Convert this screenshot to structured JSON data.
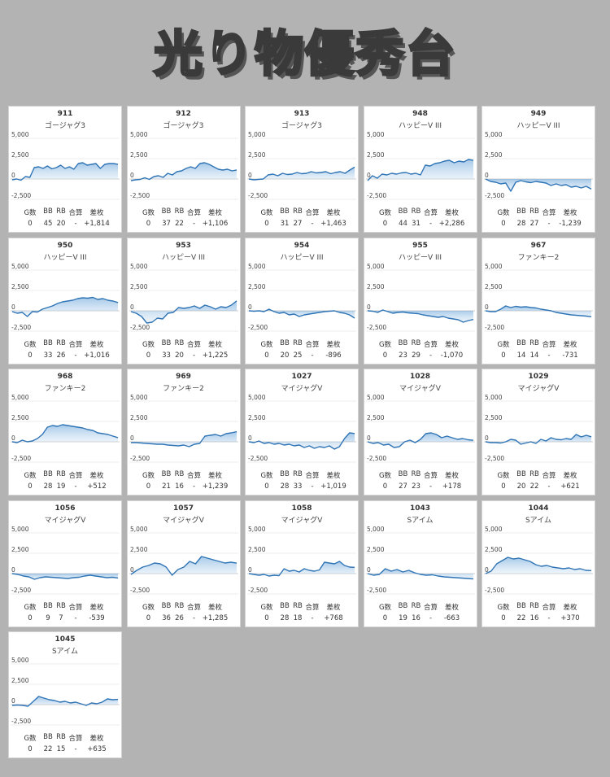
{
  "title": "光り物優秀台",
  "stat_labels": [
    "G数",
    "BB",
    "RB",
    "合算",
    "差枚"
  ],
  "chart_data": [
    {
      "type": "area",
      "machine_no": "911",
      "model": "ゴージャグ3",
      "ylim": [
        -2500,
        5000
      ],
      "yticks": [
        "5,000",
        "2,500",
        "0",
        "-2,500"
      ],
      "values": [
        -100,
        0,
        -150,
        300,
        200,
        1400,
        1500,
        1300,
        1600,
        1250,
        1400,
        1700,
        1300,
        1500,
        1200,
        1900,
        2000,
        1700,
        1800,
        1900,
        1300,
        1800,
        1900,
        1900,
        1814
      ],
      "stats": {
        "g": "0",
        "bb": "45",
        "rb": "20",
        "total": "-",
        "diff": "+1,814"
      }
    },
    {
      "type": "area",
      "machine_no": "912",
      "model": "ゴージャグ3",
      "ylim": [
        -2500,
        5000
      ],
      "yticks": [
        "5,000",
        "2,500",
        "0",
        "-2,500"
      ],
      "values": [
        -200,
        -100,
        -50,
        150,
        -50,
        300,
        400,
        200,
        700,
        500,
        900,
        1000,
        1300,
        1500,
        1300,
        1900,
        2000,
        1800,
        1500,
        1200,
        1100,
        1200,
        1000,
        1106
      ],
      "stats": {
        "g": "0",
        "bb": "37",
        "rb": "22",
        "total": "-",
        "diff": "+1,106"
      }
    },
    {
      "type": "area",
      "machine_no": "913",
      "model": "ゴージャグ3",
      "ylim": [
        -2500,
        5000
      ],
      "yticks": [
        "5,000",
        "2,500",
        "0",
        "-2,500"
      ],
      "values": [
        0,
        -100,
        -50,
        0,
        500,
        600,
        400,
        700,
        550,
        600,
        800,
        650,
        700,
        900,
        750,
        800,
        900,
        650,
        800,
        900,
        700,
        1100,
        1463
      ],
      "stats": {
        "g": "0",
        "bb": "31",
        "rb": "27",
        "total": "-",
        "diff": "+1,463"
      }
    },
    {
      "type": "area",
      "machine_no": "948",
      "model": "ハッピーV III",
      "ylim": [
        -2500,
        5000
      ],
      "yticks": [
        "5,000",
        "2,500",
        "0",
        "-2,500"
      ],
      "values": [
        -200,
        400,
        100,
        600,
        500,
        700,
        600,
        750,
        800,
        600,
        700,
        500,
        1700,
        1600,
        1900,
        2000,
        2200,
        2300,
        2000,
        2200,
        2100,
        2400,
        2286
      ],
      "stats": {
        "g": "0",
        "bb": "44",
        "rb": "31",
        "total": "-",
        "diff": "+2,286"
      }
    },
    {
      "type": "area",
      "machine_no": "949",
      "model": "ハッピーV III",
      "ylim": [
        -2500,
        5000
      ],
      "yticks": [
        "5,000",
        "2,500",
        "0",
        "-2,500"
      ],
      "values": [
        0,
        -300,
        -400,
        -600,
        -500,
        -1500,
        -400,
        -200,
        -350,
        -450,
        -300,
        -400,
        -500,
        -800,
        -600,
        -800,
        -700,
        -1000,
        -900,
        -1100,
        -900,
        -1239
      ],
      "stats": {
        "g": "0",
        "bb": "28",
        "rb": "27",
        "total": "-",
        "diff": "-1,239"
      }
    },
    {
      "type": "area",
      "machine_no": "950",
      "model": "ハッピーV III",
      "ylim": [
        -2500,
        5000
      ],
      "yticks": [
        "5,000",
        "2,500",
        "0",
        "-2,500"
      ],
      "values": [
        -100,
        -300,
        -200,
        -700,
        -100,
        -150,
        200,
        400,
        600,
        900,
        1100,
        1200,
        1300,
        1500,
        1600,
        1550,
        1650,
        1400,
        1500,
        1300,
        1200,
        1016
      ],
      "stats": {
        "g": "0",
        "bb": "33",
        "rb": "26",
        "total": "-",
        "diff": "+1,016"
      }
    },
    {
      "type": "area",
      "machine_no": "953",
      "model": "ハッピーV III",
      "ylim": [
        -2500,
        5000
      ],
      "yticks": [
        "5,000",
        "2,500",
        "0",
        "-2,500"
      ],
      "values": [
        -100,
        -300,
        -700,
        -1500,
        -1400,
        -900,
        -1000,
        -300,
        -200,
        400,
        300,
        400,
        600,
        300,
        700,
        500,
        200,
        500,
        400,
        700,
        1225
      ],
      "stats": {
        "g": "0",
        "bb": "33",
        "rb": "20",
        "total": "-",
        "diff": "+1,225"
      }
    },
    {
      "type": "area",
      "machine_no": "954",
      "model": "ハッピーV III",
      "ylim": [
        -2500,
        5000
      ],
      "yticks": [
        "5,000",
        "2,500",
        "0",
        "-2,500"
      ],
      "values": [
        0,
        -50,
        0,
        -100,
        200,
        -100,
        -300,
        -200,
        -500,
        -400,
        -700,
        -500,
        -400,
        -300,
        -200,
        -100,
        -50,
        0,
        -200,
        -300,
        -500,
        -896
      ],
      "stats": {
        "g": "0",
        "bb": "20",
        "rb": "25",
        "total": "-",
        "diff": "-896"
      }
    },
    {
      "type": "area",
      "machine_no": "955",
      "model": "ハッピーV III",
      "ylim": [
        -2500,
        5000
      ],
      "yticks": [
        "5,000",
        "2,500",
        "0",
        "-2,500"
      ],
      "values": [
        0,
        -50,
        -200,
        100,
        -100,
        -300,
        -200,
        -150,
        -250,
        -300,
        -350,
        -500,
        -600,
        -700,
        -800,
        -700,
        -900,
        -1000,
        -1100,
        -1400,
        -1200,
        -1070
      ],
      "stats": {
        "g": "0",
        "bb": "23",
        "rb": "29",
        "total": "-",
        "diff": "-1,070"
      }
    },
    {
      "type": "area",
      "machine_no": "967",
      "model": "ファンキー2",
      "ylim": [
        -2500,
        5000
      ],
      "yticks": [
        "5,000",
        "2,500",
        "0",
        "-2,500"
      ],
      "values": [
        0,
        -100,
        -100,
        200,
        600,
        400,
        550,
        450,
        500,
        400,
        350,
        200,
        100,
        0,
        -200,
        -300,
        -400,
        -500,
        -550,
        -600,
        -650,
        -731
      ],
      "stats": {
        "g": "0",
        "bb": "14",
        "rb": "14",
        "total": "-",
        "diff": "-731"
      }
    },
    {
      "type": "area",
      "machine_no": "968",
      "model": "ファンキー2",
      "ylim": [
        -2500,
        5000
      ],
      "yticks": [
        "5,000",
        "2,500",
        "0",
        "-2,500"
      ],
      "values": [
        0,
        -100,
        200,
        0,
        100,
        400,
        900,
        1800,
        2000,
        1900,
        2100,
        2000,
        1900,
        1800,
        1700,
        1500,
        1400,
        1100,
        1000,
        900,
        700,
        512
      ],
      "stats": {
        "g": "0",
        "bb": "28",
        "rb": "19",
        "total": "-",
        "diff": "+512"
      }
    },
    {
      "type": "area",
      "machine_no": "969",
      "model": "ファンキー2",
      "ylim": [
        -2500,
        5000
      ],
      "yticks": [
        "5,000",
        "2,500",
        "0",
        "-2,500"
      ],
      "values": [
        -100,
        -100,
        -150,
        -200,
        -250,
        -300,
        -300,
        -400,
        -450,
        -500,
        -400,
        -600,
        -300,
        -200,
        700,
        800,
        900,
        700,
        1000,
        1100,
        1239
      ],
      "stats": {
        "g": "0",
        "bb": "21",
        "rb": "16",
        "total": "-",
        "diff": "+1,239"
      }
    },
    {
      "type": "area",
      "machine_no": "1027",
      "model": "マイジャグV",
      "ylim": [
        -2500,
        5000
      ],
      "yticks": [
        "5,000",
        "2,500",
        "0",
        "-2,500"
      ],
      "values": [
        0,
        -100,
        100,
        -200,
        -100,
        -300,
        -200,
        -400,
        -300,
        -500,
        -400,
        -700,
        -500,
        -800,
        -600,
        -700,
        -500,
        -900,
        -600,
        400,
        1100,
        1019
      ],
      "stats": {
        "g": "0",
        "bb": "28",
        "rb": "33",
        "total": "-",
        "diff": "+1,019"
      }
    },
    {
      "type": "area",
      "machine_no": "1028",
      "model": "マイジャグV",
      "ylim": [
        -2500,
        5000
      ],
      "yticks": [
        "5,000",
        "2,500",
        "0",
        "-2,500"
      ],
      "values": [
        0,
        -200,
        -100,
        -400,
        -300,
        -700,
        -600,
        0,
        200,
        -100,
        300,
        1000,
        1100,
        900,
        500,
        700,
        500,
        300,
        400,
        250,
        178
      ],
      "stats": {
        "g": "0",
        "bb": "27",
        "rb": "23",
        "total": "-",
        "diff": "+178"
      }
    },
    {
      "type": "area",
      "machine_no": "1029",
      "model": "マイジャグV",
      "ylim": [
        -2500,
        5000
      ],
      "yticks": [
        "5,000",
        "2,500",
        "0",
        "-2,500"
      ],
      "values": [
        0,
        -100,
        -100,
        -150,
        0,
        300,
        200,
        -300,
        -150,
        0,
        -200,
        300,
        100,
        500,
        300,
        250,
        400,
        300,
        900,
        600,
        800,
        621
      ],
      "stats": {
        "g": "0",
        "bb": "20",
        "rb": "22",
        "total": "-",
        "diff": "+621"
      }
    },
    {
      "type": "area",
      "machine_no": "1056",
      "model": "マイジャグV",
      "ylim": [
        -2500,
        5000
      ],
      "yticks": [
        "5,000",
        "2,500",
        "0",
        "-2,500"
      ],
      "values": [
        0,
        -100,
        -300,
        -400,
        -700,
        -500,
        -400,
        -450,
        -500,
        -550,
        -600,
        -500,
        -450,
        -300,
        -200,
        -300,
        -400,
        -500,
        -450,
        -539
      ],
      "stats": {
        "g": "0",
        "bb": "9",
        "rb": "7",
        "total": "-",
        "diff": "-539"
      }
    },
    {
      "type": "area",
      "machine_no": "1057",
      "model": "マイジャグV",
      "ylim": [
        -2500,
        5000
      ],
      "yticks": [
        "5,000",
        "2,500",
        "0",
        "-2,500"
      ],
      "values": [
        -100,
        400,
        800,
        1000,
        1300,
        1200,
        800,
        -200,
        500,
        800,
        1500,
        1200,
        2100,
        1900,
        1700,
        1500,
        1300,
        1400,
        1285
      ],
      "stats": {
        "g": "0",
        "bb": "36",
        "rb": "26",
        "total": "-",
        "diff": "+1,285"
      }
    },
    {
      "type": "area",
      "machine_no": "1058",
      "model": "マイジャグV",
      "ylim": [
        -2500,
        5000
      ],
      "yticks": [
        "5,000",
        "2,500",
        "0",
        "-2,500"
      ],
      "values": [
        0,
        -100,
        -200,
        -100,
        -300,
        -200,
        -250,
        600,
        300,
        400,
        200,
        600,
        400,
        300,
        450,
        1400,
        1300,
        1200,
        1500,
        1000,
        800,
        768
      ],
      "stats": {
        "g": "0",
        "bb": "28",
        "rb": "18",
        "total": "-",
        "diff": "+768"
      }
    },
    {
      "type": "area",
      "machine_no": "1043",
      "model": "Sアイム",
      "ylim": [
        -2500,
        5000
      ],
      "yticks": [
        "5,000",
        "2,500",
        "0",
        "-2,500"
      ],
      "values": [
        0,
        -200,
        -100,
        600,
        300,
        500,
        200,
        400,
        100,
        -100,
        -200,
        -150,
        -300,
        -400,
        -450,
        -500,
        -550,
        -600,
        -663
      ],
      "stats": {
        "g": "0",
        "bb": "19",
        "rb": "16",
        "total": "-",
        "diff": "-663"
      }
    },
    {
      "type": "area",
      "machine_no": "1044",
      "model": "Sアイム",
      "ylim": [
        -2500,
        5000
      ],
      "yticks": [
        "5,000",
        "2,500",
        "0",
        "-2,500"
      ],
      "values": [
        0,
        300,
        1200,
        1600,
        2000,
        1800,
        1900,
        1700,
        1500,
        1100,
        900,
        1000,
        800,
        700,
        600,
        700,
        500,
        600,
        400,
        370
      ],
      "stats": {
        "g": "0",
        "bb": "22",
        "rb": "16",
        "total": "-",
        "diff": "+370"
      }
    },
    {
      "type": "area",
      "machine_no": "1045",
      "model": "Sアイム",
      "ylim": [
        -2500,
        5000
      ],
      "yticks": [
        "5,000",
        "2,500",
        "0",
        "-2,500"
      ],
      "values": [
        -100,
        -50,
        -100,
        -200,
        400,
        1000,
        800,
        600,
        500,
        300,
        400,
        200,
        300,
        100,
        -100,
        200,
        100,
        300,
        700,
        600,
        635
      ],
      "stats": {
        "g": "0",
        "bb": "22",
        "rb": "15",
        "total": "-",
        "diff": "+635"
      }
    }
  ]
}
